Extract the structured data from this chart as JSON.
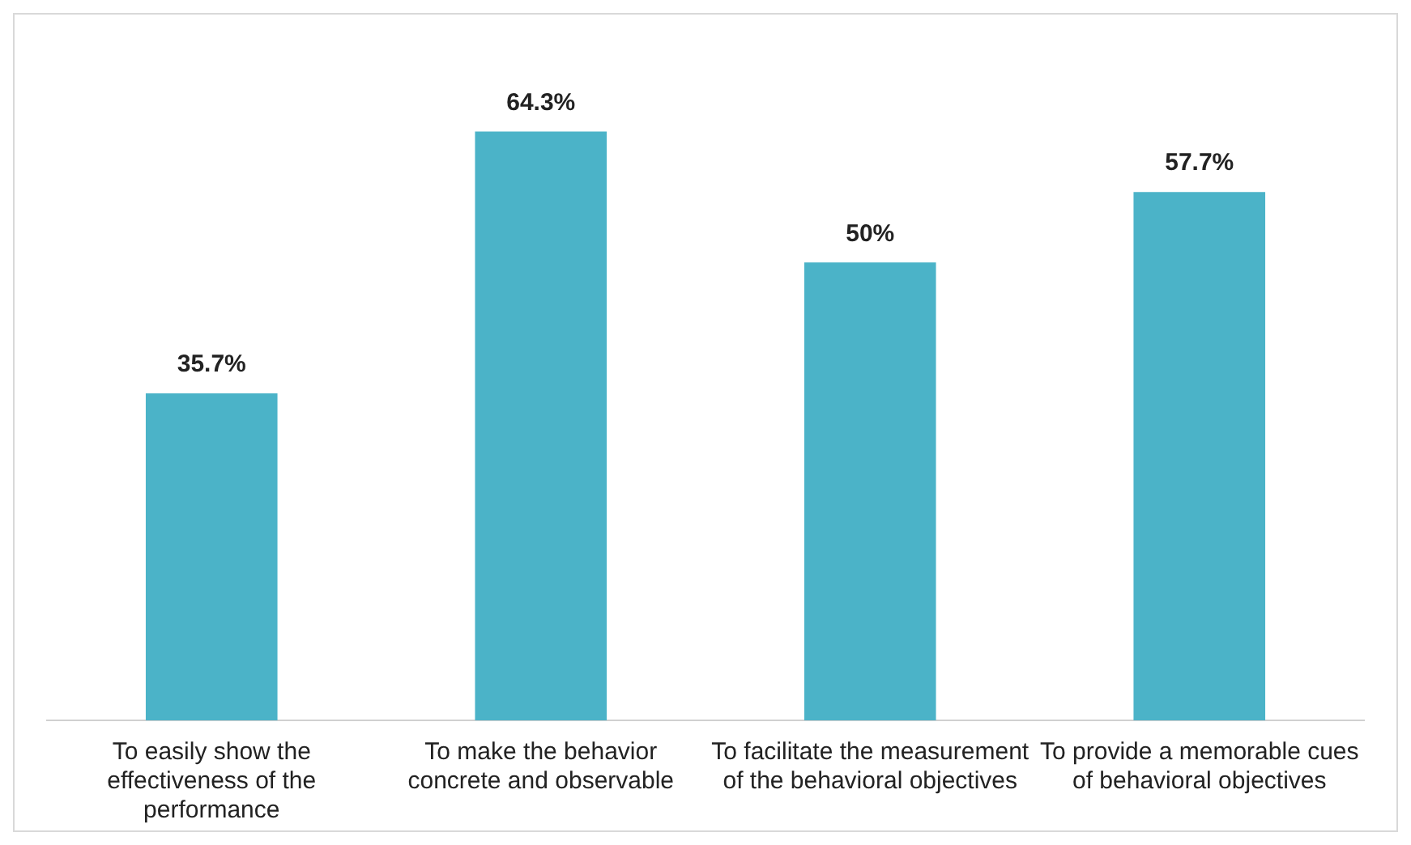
{
  "chart_data": {
    "type": "bar",
    "categories": [
      "To easily show the effectiveness of the performance",
      "To make the behavior concrete and observable",
      "To facilitate the measurement of the behavioral objectives",
      "To provide a memorable cues of behavioral objectives"
    ],
    "values": [
      35.7,
      64.3,
      50,
      57.7
    ],
    "value_labels": [
      "35.7%",
      "64.3%",
      "50%",
      "57.7%"
    ],
    "color": "#4bb3c8",
    "grid": false,
    "legend": false
  }
}
